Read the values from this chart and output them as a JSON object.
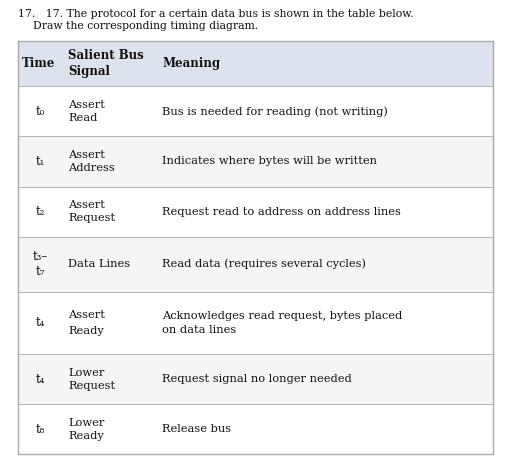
{
  "title_line1": "17.   17. The protocol for a certain data bus is shown in the table below.",
  "title_line2": "Draw the corresponding timing diagram.",
  "header": [
    "Time",
    "Salient Bus\nSignal",
    "Meaning"
  ],
  "rows": [
    {
      "time": "t₀",
      "time_sub": null,
      "signal_line1": "Assert",
      "signal_line2": "Read",
      "meaning": "Bus is needed for reading (not writing)"
    },
    {
      "time": "t₁",
      "time_sub": null,
      "signal_line1": "Assert",
      "signal_line2": "Address",
      "meaning": "Indicates where bytes will be written"
    },
    {
      "time": "t₂",
      "time_sub": null,
      "signal_line1": "Assert",
      "signal_line2": "Request",
      "meaning": "Request read to address on address lines"
    },
    {
      "time": "t₃–",
      "time_sub": "t₇",
      "signal_line1": "Data Lines",
      "signal_line2": null,
      "meaning": "Read data (requires several cycles)"
    },
    {
      "time": "t₄",
      "time_sub": null,
      "signal_line1": "Assert",
      "signal_line2": "Ready",
      "meaning": "Acknowledges read request, bytes placed\non data lines"
    },
    {
      "time": "t₄",
      "time_sub": null,
      "signal_line1": "Lower",
      "signal_line2": "Request",
      "meaning": "Request signal no longer needed"
    },
    {
      "time": "t₈",
      "time_sub": null,
      "signal_line1": "Lower",
      "signal_line2": "Ready",
      "meaning": "Release bus"
    }
  ],
  "header_bg": "#dce3ee",
  "row_bg_white": "#ffffff",
  "row_bg_gray": "#f5f5f5",
  "border_color": "#aaaaaa",
  "text_color": "#111111",
  "title_color": "#111111",
  "figsize": [
    5.06,
    4.59
  ],
  "dpi": 100
}
